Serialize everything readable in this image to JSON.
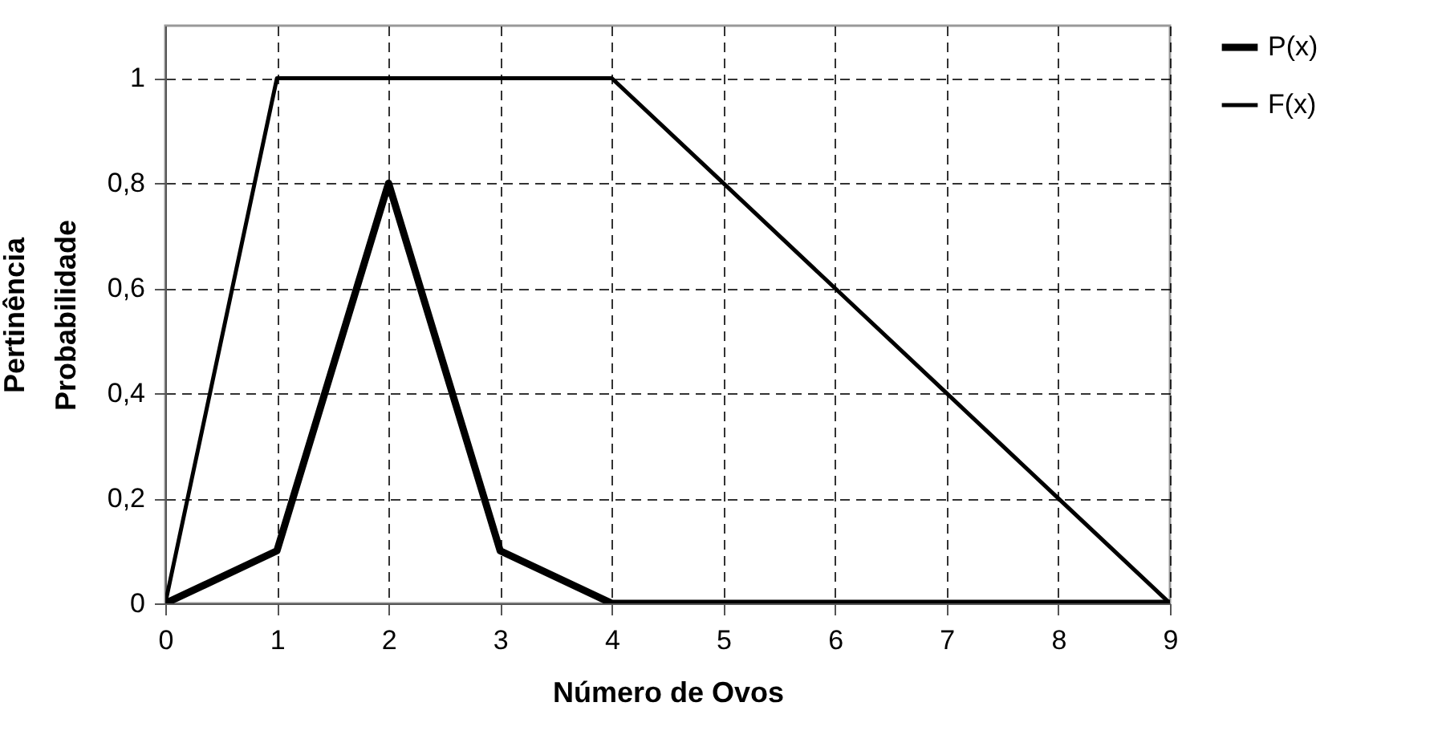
{
  "chart_data": {
    "type": "line",
    "xlabel": "Número de Ovos",
    "ylabel": "Pertinência\nProbabilidade",
    "x": [
      0,
      1,
      2,
      3,
      4,
      5,
      6,
      7,
      8,
      9
    ],
    "series": [
      {
        "name": "P(x)",
        "color": "#000000",
        "values": [
          0,
          0.1,
          0.8,
          0.1,
          0,
          0,
          0,
          0,
          0,
          0
        ]
      },
      {
        "name": "F(x)",
        "color": "#000000",
        "values": [
          0,
          1,
          1,
          1,
          1,
          0.8,
          0.6,
          0.4,
          0.2,
          0
        ]
      }
    ],
    "xlim": [
      0,
      9
    ],
    "xticks": [
      0,
      1,
      2,
      3,
      4,
      5,
      6,
      7,
      8,
      9
    ],
    "ylim": [
      0,
      1.1
    ],
    "yticks": [
      0,
      {
        "value": 0.2,
        "label": "0,2"
      },
      {
        "value": 0.4,
        "label": "0,4"
      },
      {
        "value": 0.6,
        "label": "0,6"
      },
      {
        "value": 0.8,
        "label": "0,8"
      },
      1
    ],
    "grid": true,
    "legend": "right",
    "marker": "none",
    "line_style": "solid"
  }
}
